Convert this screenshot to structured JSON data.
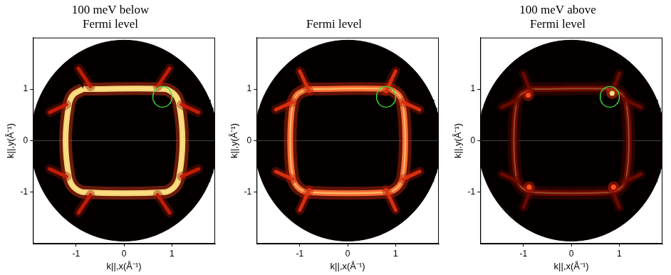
{
  "chart_data": [
    {
      "type": "intensity_map",
      "title": [
        "100 meV below",
        "Fermi level"
      ],
      "x_label": "k||,x(Å⁻¹)",
      "y_label": "k||,y(Å⁻¹)",
      "xlim": [
        -1.9,
        1.9
      ],
      "ylim": [
        -2,
        2
      ],
      "xticks": [
        -1,
        0,
        1
      ],
      "yticks": [
        -1,
        0,
        1
      ],
      "detector_radius": 1.95,
      "ring": {
        "intensity": 1.0,
        "points": [
          [
            -0.85,
            1.0
          ],
          [
            0.85,
            1.0
          ],
          [
            1.05,
            0.9
          ],
          [
            1.15,
            0.7
          ],
          [
            1.22,
            0
          ],
          [
            1.15,
            -0.7
          ],
          [
            1.05,
            -0.9
          ],
          [
            0.85,
            -1.0
          ],
          [
            -0.85,
            -1.0
          ],
          [
            -1.05,
            -0.9
          ],
          [
            -1.15,
            -0.7
          ],
          [
            -1.22,
            0
          ],
          [
            -1.15,
            0.7
          ],
          [
            -1.05,
            0.9
          ],
          [
            -0.85,
            1.0
          ]
        ]
      },
      "streaks": [
        {
          "from": [
            -0.7,
            1.05
          ],
          "to": [
            -0.95,
            1.4
          ],
          "intensity": 0.55
        },
        {
          "from": [
            0.7,
            1.05
          ],
          "to": [
            0.95,
            1.4
          ],
          "intensity": 0.55
        },
        {
          "from": [
            -0.7,
            -1.05
          ],
          "to": [
            -0.95,
            -1.4
          ],
          "intensity": 0.55
        },
        {
          "from": [
            0.7,
            -1.05
          ],
          "to": [
            0.95,
            -1.4
          ],
          "intensity": 0.55
        },
        {
          "from": [
            -1.2,
            0.7
          ],
          "to": [
            -1.55,
            0.55
          ],
          "intensity": 0.55
        },
        {
          "from": [
            1.2,
            0.7
          ],
          "to": [
            1.55,
            0.55
          ],
          "intensity": 0.55
        },
        {
          "from": [
            -1.2,
            -0.7
          ],
          "to": [
            -1.55,
            -0.55
          ],
          "intensity": 0.55
        },
        {
          "from": [
            1.2,
            -0.7
          ],
          "to": [
            1.55,
            -0.55
          ],
          "intensity": 0.55
        }
      ],
      "spots": [],
      "marker": {
        "center": [
          0.8,
          0.85
        ],
        "radius": 0.2,
        "color": "#3ddc3d"
      }
    },
    {
      "type": "intensity_map",
      "title": [
        "Fermi level"
      ],
      "x_label": "k||,x(Å⁻¹)",
      "y_label": "k||,y(Å⁻¹)",
      "xlim": [
        -1.9,
        1.9
      ],
      "ylim": [
        -2,
        2
      ],
      "xticks": [
        -1,
        0,
        1
      ],
      "yticks": [
        -1,
        0,
        1
      ],
      "detector_radius": 1.95,
      "ring": {
        "intensity": 0.85,
        "points": [
          [
            -0.85,
            1.0
          ],
          [
            0.85,
            1.0
          ],
          [
            1.05,
            0.9
          ],
          [
            1.15,
            0.7
          ],
          [
            1.2,
            0
          ],
          [
            1.15,
            -0.7
          ],
          [
            1.05,
            -0.9
          ],
          [
            0.85,
            -1.0
          ],
          [
            -0.85,
            -1.0
          ],
          [
            -1.05,
            -0.9
          ],
          [
            -1.15,
            -0.7
          ],
          [
            -1.2,
            0
          ],
          [
            -1.15,
            0.7
          ],
          [
            -1.05,
            0.9
          ],
          [
            -0.85,
            1.0
          ]
        ]
      },
      "streaks": [
        {
          "from": [
            -0.8,
            0.95
          ],
          "to": [
            -1.0,
            1.35
          ],
          "intensity": 0.65
        },
        {
          "from": [
            0.8,
            0.95
          ],
          "to": [
            1.0,
            1.35
          ],
          "intensity": 0.65
        },
        {
          "from": [
            -0.8,
            -0.95
          ],
          "to": [
            -1.0,
            -1.35
          ],
          "intensity": 0.65
        },
        {
          "from": [
            0.8,
            -0.95
          ],
          "to": [
            1.0,
            -1.35
          ],
          "intensity": 0.65
        },
        {
          "from": [
            -1.15,
            0.75
          ],
          "to": [
            -1.5,
            0.6
          ],
          "intensity": 0.65
        },
        {
          "from": [
            1.15,
            0.75
          ],
          "to": [
            1.5,
            0.6
          ],
          "intensity": 0.65
        },
        {
          "from": [
            -1.15,
            -0.75
          ],
          "to": [
            -1.5,
            -0.6
          ],
          "intensity": 0.65
        },
        {
          "from": [
            1.15,
            -0.75
          ],
          "to": [
            1.5,
            -0.6
          ],
          "intensity": 0.65
        }
      ],
      "spots": [],
      "marker": {
        "center": [
          0.8,
          0.85
        ],
        "radius": 0.2,
        "color": "#3ddc3d"
      }
    },
    {
      "type": "intensity_map",
      "title": [
        "100 meV above",
        "Fermi level"
      ],
      "x_label": "k||,x(Å⁻¹)",
      "y_label": "k||,y(Å⁻¹)",
      "xlim": [
        -1.9,
        1.9
      ],
      "ylim": [
        -2,
        2
      ],
      "xticks": [
        -1,
        0,
        1
      ],
      "yticks": [
        -1,
        0,
        1
      ],
      "detector_radius": 1.95,
      "ring": {
        "intensity": 0.3,
        "points": [
          [
            -0.85,
            1.0
          ],
          [
            0.85,
            1.0
          ],
          [
            1.05,
            0.9
          ],
          [
            1.15,
            0.7
          ],
          [
            1.2,
            0
          ],
          [
            1.15,
            -0.7
          ],
          [
            1.05,
            -0.9
          ],
          [
            0.85,
            -1.0
          ],
          [
            -0.85,
            -1.0
          ],
          [
            -1.05,
            -0.9
          ],
          [
            -1.15,
            -0.7
          ],
          [
            -1.2,
            0
          ],
          [
            -1.15,
            0.7
          ],
          [
            -1.05,
            0.9
          ],
          [
            -0.85,
            1.0
          ]
        ]
      },
      "streaks": [
        {
          "from": [
            -0.85,
            0.95
          ],
          "to": [
            -1.0,
            1.3
          ],
          "intensity": 0.3
        },
        {
          "from": [
            0.85,
            0.95
          ],
          "to": [
            1.0,
            1.3
          ],
          "intensity": 0.3
        },
        {
          "from": [
            -0.85,
            -0.95
          ],
          "to": [
            -1.0,
            -1.3
          ],
          "intensity": 0.3
        },
        {
          "from": [
            0.85,
            -0.95
          ],
          "to": [
            1.0,
            -1.3
          ],
          "intensity": 0.3
        },
        {
          "from": [
            -1.1,
            0.8
          ],
          "to": [
            -1.45,
            0.65
          ],
          "intensity": 0.3
        },
        {
          "from": [
            1.1,
            0.8
          ],
          "to": [
            1.45,
            0.65
          ],
          "intensity": 0.3
        },
        {
          "from": [
            -1.1,
            -0.8
          ],
          "to": [
            -1.45,
            -0.65
          ],
          "intensity": 0.3
        },
        {
          "from": [
            1.1,
            -0.8
          ],
          "to": [
            1.45,
            -0.65
          ],
          "intensity": 0.3
        }
      ],
      "spots": [
        {
          "x": 0.85,
          "y": 0.92,
          "intensity": 1.0
        },
        {
          "x": -0.9,
          "y": 0.88,
          "intensity": 0.8
        },
        {
          "x": -0.88,
          "y": -0.9,
          "intensity": 0.8
        },
        {
          "x": 0.88,
          "y": -0.9,
          "intensity": 0.8
        }
      ],
      "marker": {
        "center": [
          0.8,
          0.85
        ],
        "radius": 0.2,
        "color": "#3ddc3d"
      }
    }
  ]
}
